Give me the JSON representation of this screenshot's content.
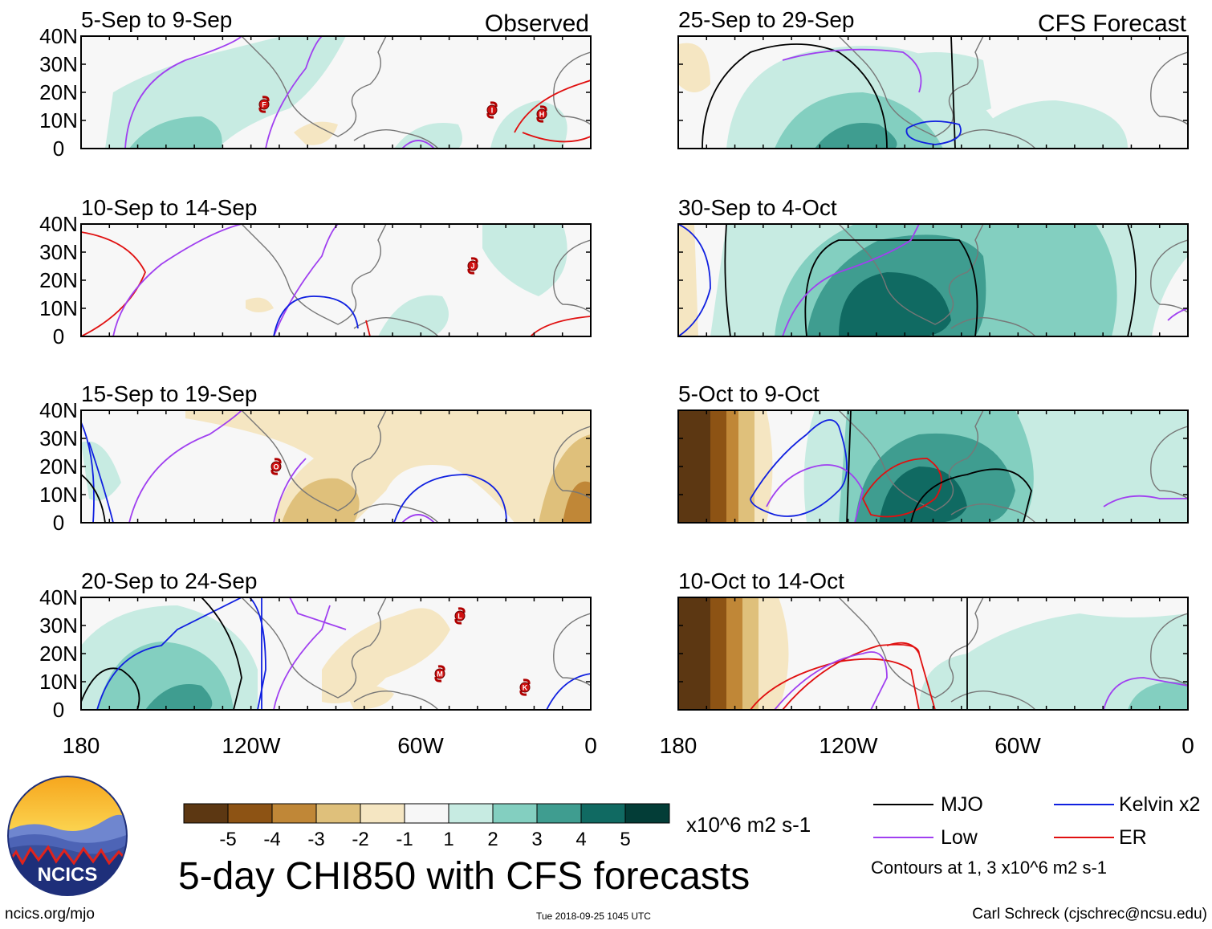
{
  "chart_data": {
    "type": "map",
    "variable": "CHI850",
    "title": "5-day CHI850 with CFS forecasts",
    "units": "x10^6 m2 s-1",
    "x_axis": {
      "range": [
        180,
        0
      ],
      "ticks": [
        "180",
        "120W",
        "60W",
        "0"
      ]
    },
    "y_axis": {
      "range": [
        0,
        40
      ],
      "ticks": [
        "40N",
        "30N",
        "20N",
        "10N",
        "0"
      ]
    },
    "columns": [
      {
        "label": "Observed",
        "panels": [
          {
            "period": "5-Sep to 9-Sep",
            "storms": [
              "F",
              "I",
              "H"
            ]
          },
          {
            "period": "10-Sep to 14-Sep",
            "storms": [
              "J"
            ]
          },
          {
            "period": "15-Sep to 19-Sep",
            "storms": [
              "O"
            ]
          },
          {
            "period": "20-Sep to 24-Sep",
            "storms": [
              "L",
              "M",
              "K"
            ]
          }
        ]
      },
      {
        "label": "CFS Forecast",
        "panels": [
          {
            "period": "25-Sep to 29-Sep"
          },
          {
            "period": "30-Sep to 4-Oct"
          },
          {
            "period": "5-Oct to 9-Oct"
          },
          {
            "period": "10-Oct to 14-Oct"
          }
        ]
      }
    ],
    "colorbar": {
      "labels": [
        "-5",
        "-4",
        "-3",
        "-2",
        "-1",
        "1",
        "2",
        "3",
        "4",
        "5"
      ],
      "colors": [
        "#5c3712",
        "#8d5314",
        "#c08737",
        "#dfc07b",
        "#f5e6c2",
        "#f7f7f7",
        "#c7ebe2",
        "#83cfc0",
        "#3f9d90",
        "#106a62",
        "#033d37"
      ]
    },
    "legend": [
      {
        "label": "MJO",
        "color": "#000000"
      },
      {
        "label": "Kelvin x2",
        "color": "#1020e0"
      },
      {
        "label": "Low",
        "color": "#a040f0"
      },
      {
        "label": "ER",
        "color": "#e01010"
      }
    ],
    "contour_note": "Contours at 1, 3 x10^6 m2 s-1"
  },
  "logo": {
    "text": "NCICS"
  },
  "footer": {
    "site": "ncics.org/mjo",
    "timestamp": "Tue 2018-09-25 1045 UTC",
    "author": "Carl Schreck (cjschrec@ncsu.edu)"
  }
}
